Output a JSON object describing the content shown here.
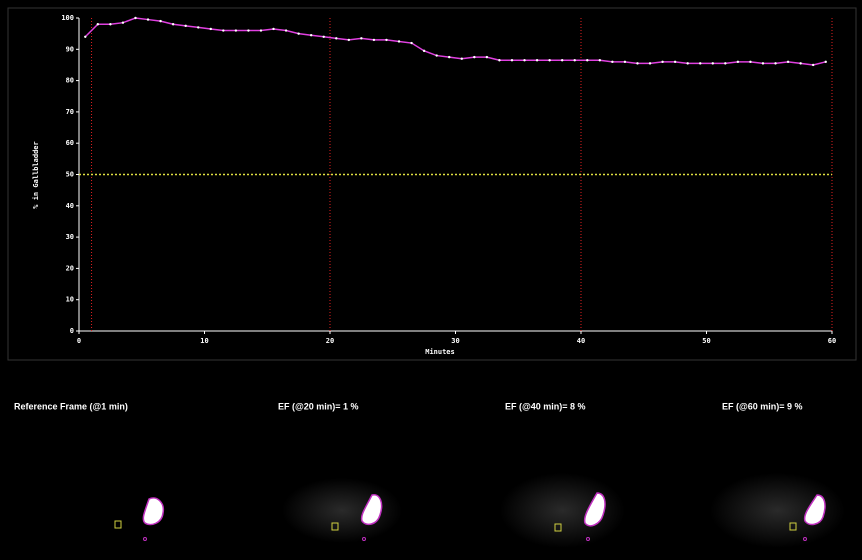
{
  "chart_data": {
    "type": "line",
    "xlabel": "Minutes",
    "ylabel": "% in Gallbladder",
    "xlim": [
      0,
      60
    ],
    "xticks": [
      0,
      10,
      20,
      30,
      40,
      50,
      60
    ],
    "ylim": [
      0,
      100
    ],
    "yticks": [
      0,
      10,
      20,
      30,
      40,
      50,
      60,
      70,
      80,
      90,
      100
    ],
    "series": [
      {
        "color": "#e040e0",
        "x": [
          0.5,
          1.5,
          2.5,
          3.5,
          4.5,
          5.5,
          6.5,
          7.5,
          8.5,
          9.5,
          10.5,
          11.5,
          12.5,
          13.5,
          14.5,
          15.5,
          16.5,
          17.5,
          18.5,
          19.5,
          20.5,
          21.5,
          22.5,
          23.5,
          24.5,
          25.5,
          26.5,
          27.5,
          28.5,
          29.5,
          30.5,
          31.5,
          32.5,
          33.5,
          34.5,
          35.5,
          36.5,
          37.5,
          38.5,
          39.5,
          40.5,
          41.5,
          42.5,
          43.5,
          44.5,
          45.5,
          46.5,
          47.5,
          48.5,
          49.5,
          50.5,
          51.5,
          52.5,
          53.5,
          54.5,
          55.5,
          56.5,
          57.5,
          58.5,
          59.5
        ],
        "values": [
          94,
          98,
          98,
          98.5,
          100,
          99.5,
          99,
          98,
          97.5,
          97,
          96.5,
          96,
          96,
          96,
          96,
          96.5,
          96,
          95,
          94.5,
          94,
          93.5,
          93,
          93.5,
          93,
          93,
          92.5,
          92,
          89.5,
          88,
          87.5,
          87,
          87.5,
          87.5,
          86.5,
          86.5,
          86.5,
          86.5,
          86.5,
          86.5,
          86.5,
          86.5,
          86.5,
          86,
          86,
          85.5,
          85.5,
          86,
          86,
          85.5,
          85.5,
          85.5,
          85.5,
          86,
          86,
          85.5,
          85.5,
          86,
          85.5,
          85,
          86
        ]
      }
    ],
    "vlines": [
      1,
      20,
      40,
      60
    ],
    "vline_color": "#e02020",
    "hline": 50,
    "hline_color": "#e0e040",
    "annotations": [
      "Reference Frame (@1 min)",
      "EF (@20 min)= 1 %",
      "EF (@40 min)= 8 %",
      "EF (@60 min)= 9 %"
    ]
  }
}
